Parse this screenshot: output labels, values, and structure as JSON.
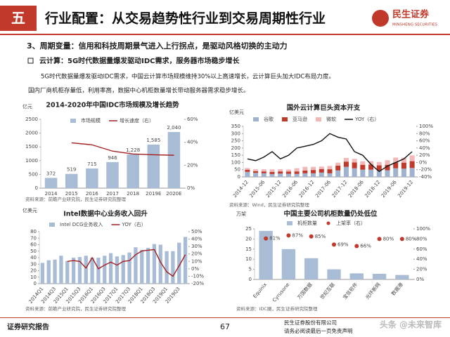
{
  "header": {
    "section": "五",
    "title": "行业配置：从交易趋势性行业到交易周期性行业",
    "logo_cn": "民生证券",
    "logo_en": "MINSHENG SECURITIES"
  },
  "subtitle": "3、周期变量：信用和科技周期景气进入上行拐点，是驱动风格切换的主动力",
  "bullet": "云计算：5G时代数据量爆发驱动IDC需求，服务器市场稳步增长",
  "paragraph": [
    "5G时代数据量爆发驱动IDC需求，中国云计算市场规模维持30%以上高速增长，云计算巨头加大IDC布局力度。",
    "国内厂商机柜存量低，利用率高，数据中心机柜数量增长带动服务器需求稳步增长。"
  ],
  "footer": {
    "left": "证券研究报告",
    "page": "67",
    "company": "民生证券股份有限公司",
    "disclaimer": "请务必阅读最后一页免责声明",
    "watermark": "头条 @未来智库"
  },
  "chart_data": [
    {
      "type": "bar",
      "title": "2014-2020年中国IDC市场规模及增长趋势",
      "ylabel": "亿元",
      "source": "资料来源：前瞻产业研究院，民生证券研究院整理",
      "categories": [
        "2014",
        "2015",
        "2016",
        "2017",
        "2018",
        "2019E",
        "2020E"
      ],
      "series": [
        {
          "name": "市场规模",
          "color": "#a9bcd6",
          "values": [
            372,
            519,
            715,
            946,
            1228,
            1585,
            2040
          ],
          "value_labels": [
            "372",
            "519",
            "715",
            "946",
            "1,228",
            "1,585",
            "2,040"
          ]
        },
        {
          "name": "增长速度（右）",
          "color": "#a31f1f",
          "axis": "y2",
          "type": "line",
          "values": [
            null,
            39.5,
            37.8,
            32.3,
            29.8,
            29.1,
            28.7
          ]
        }
      ],
      "ylim": [
        0,
        2500
      ],
      "yticks": [
        0,
        500,
        1000,
        1500,
        2000,
        2500
      ],
      "y2lim": [
        0,
        60
      ],
      "y2ticks": [
        {
          "value": 0,
          "label": "0%"
        },
        {
          "value": 20,
          "label": "20%"
        },
        {
          "value": 40,
          "label": "40%"
        },
        {
          "value": 60,
          "label": "60%"
        }
      ],
      "grid": false
    },
    {
      "type": "bar",
      "stacked": true,
      "title": "国外云计算巨头资本开支",
      "ylabel": "亿美元",
      "source": "资料来源：Wind，民生证券研究院整理",
      "categories": [
        "2014-12",
        null,
        "2015-06",
        null,
        "2015-12",
        null,
        "2016-06",
        null,
        "2016-12",
        null,
        "2017-06",
        null,
        "2017-12",
        null,
        "2018-06",
        null,
        "2018-12",
        null,
        "2019-06",
        null,
        "2019-12"
      ],
      "series": [
        {
          "name": "谷歌",
          "color": "#9fb3cf",
          "values": [
            35,
            28,
            25,
            20,
            23,
            22,
            21,
            25,
            25,
            30,
            25,
            45,
            70,
            60,
            50,
            50,
            44,
            46,
            60,
            57,
            62
          ]
        },
        {
          "name": "亚马逊",
          "color": "#c0392b",
          "values": [
            15,
            12,
            13,
            15,
            15,
            15,
            17,
            19,
            23,
            25,
            28,
            33,
            36,
            40,
            34,
            35,
            36,
            38,
            40,
            42,
            47
          ]
        },
        {
          "name": "微软",
          "color": "#f2b8b8",
          "values": [
            12,
            13,
            15,
            17,
            15,
            14,
            22,
            26,
            22,
            17,
            23,
            21,
            26,
            25,
            24,
            24,
            23,
            32,
            34,
            34,
            40
          ]
        },
        {
          "name": "YOY（右）",
          "color": "#111111",
          "axis": "y2",
          "type": "line",
          "values": [
            10,
            5,
            15,
            30,
            10,
            20,
            40,
            45,
            50,
            60,
            80,
            70,
            65,
            30,
            20,
            -5,
            -25,
            -10,
            0,
            10,
            30
          ]
        }
      ],
      "ylim": [
        0,
        350
      ],
      "yticks": [
        0,
        50,
        100,
        150,
        200,
        250,
        300,
        350
      ],
      "y2lim": [
        -40,
        100
      ],
      "y2ticks": [
        {
          "value": -40,
          "label": "-40%"
        },
        {
          "value": -20,
          "label": "-20%"
        },
        {
          "value": 0,
          "label": "0%"
        },
        {
          "value": 20,
          "label": "20%"
        },
        {
          "value": 40,
          "label": "40%"
        },
        {
          "value": 60,
          "label": "60%"
        },
        {
          "value": 80,
          "label": "80%"
        },
        {
          "value": 100,
          "label": "100%"
        }
      ],
      "grid": false
    },
    {
      "type": "bar",
      "title": "Intel数据中心业务收入回升",
      "ylabel": "亿美元",
      "source": "资料来源：前瞻产业研究院，民生证券研究院整理",
      "categories": [
        "2014Q1",
        null,
        "2014Q3",
        null,
        "2015Q1",
        null,
        "2015Q3",
        null,
        "2016Q1",
        null,
        "2016Q3",
        null,
        "2017Q1",
        null,
        "2017Q3",
        null,
        "2018Q1",
        null,
        "2018Q3",
        null,
        "2019Q1",
        null,
        "2019Q3",
        null
      ],
      "series": [
        {
          "name": "Intel DCG业务收入",
          "color": "#a9bcd6",
          "values": [
            32,
            36,
            37,
            43,
            35,
            40,
            41,
            43,
            40,
            40,
            43,
            47,
            42,
            44,
            48,
            56,
            52,
            55,
            61,
            60,
            50,
            50,
            63,
            72
          ]
        },
        {
          "name": "YOY（右）",
          "color": "#a31f1f",
          "axis": "y2",
          "type": "line",
          "values": [
            null,
            null,
            null,
            null,
            10,
            11,
            10,
            1,
            15,
            0,
            5,
            9,
            5,
            10,
            11,
            19,
            24,
            25,
            26,
            9,
            -4,
            -10,
            4,
            19
          ]
        }
      ],
      "ylim": [
        0,
        80
      ],
      "yticks": [
        0,
        10,
        20,
        30,
        40,
        50,
        60,
        70,
        80
      ],
      "y2lim": [
        -20,
        50
      ],
      "y2ticks": [
        {
          "value": -20,
          "label": "-20%"
        },
        {
          "value": -10,
          "label": "-10%"
        },
        {
          "value": 0,
          "label": "0%"
        },
        {
          "value": 10,
          "label": "10%"
        },
        {
          "value": 20,
          "label": "20%"
        },
        {
          "value": 30,
          "label": "30%"
        },
        {
          "value": 40,
          "label": "40%"
        },
        {
          "value": 50,
          "label": "50%"
        }
      ],
      "grid": false
    },
    {
      "type": "bar",
      "title": "中国主要公司机柜数量仍处低位",
      "ylabel": "万架",
      "source": "资料来源：IDC圈，民生证券研究院整理",
      "categories": [
        "Equinix",
        "Cyrusone",
        "万国数据",
        "世纪互联",
        "宝信软件",
        "光环新网",
        "数据港"
      ],
      "series": [
        {
          "name": "机柜数量",
          "color": "#a9bcd6",
          "values": [
            24,
            15,
            10.5,
            5,
            3,
            2.8,
            2.2
          ]
        },
        {
          "name": "上架率（右）",
          "color": "#c0392b",
          "axis": "y2",
          "type": "scatter",
          "values": [
            81,
            87,
            85,
            69,
            66,
            80,
            80
          ],
          "value_labels": [
            "81%",
            "87%",
            "85%",
            "69%",
            "66%",
            "80%",
            "80%"
          ]
        }
      ],
      "ylim": [
        0,
        25
      ],
      "yticks": [
        0,
        5,
        10,
        15,
        20,
        25
      ],
      "y2lim": [
        0,
        100
      ],
      "y2ticks": [
        {
          "value": 0,
          "label": "0%"
        },
        {
          "value": 20,
          "label": "20%"
        },
        {
          "value": 40,
          "label": "40%"
        },
        {
          "value": 60,
          "label": "60%"
        },
        {
          "value": 80,
          "label": "80%"
        },
        {
          "value": 100,
          "label": "100%"
        }
      ],
      "grid": false
    }
  ]
}
